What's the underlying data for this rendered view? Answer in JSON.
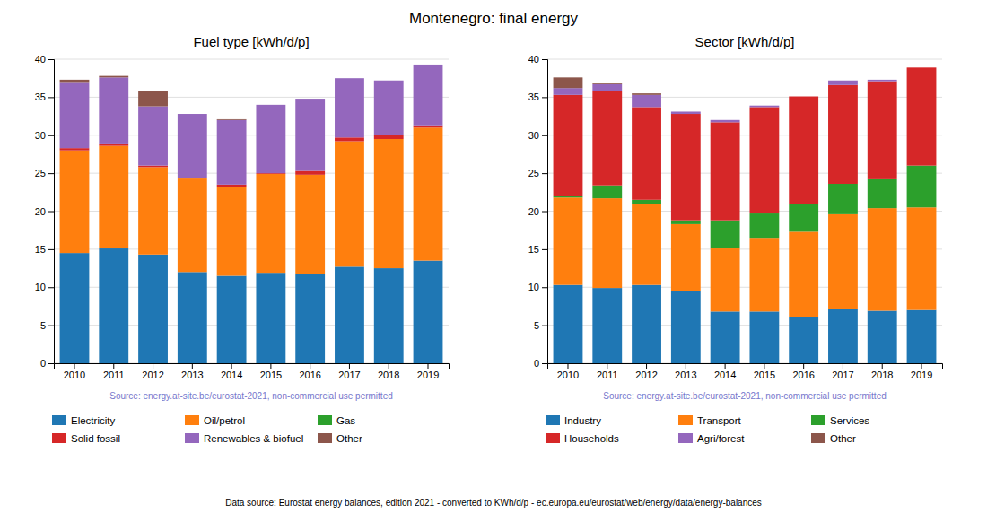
{
  "title": "Montenegro: final energy",
  "annotations": [
    "Data source: Eurostat energy balances, edition 2021 - converted to KWh/d/p - ec.europa.eu/eurostat/web/energy/data/energy-balances"
  ],
  "chart_data": [
    {
      "type": "bar",
      "title": "Fuel type [kWh/d/p]",
      "stacked": true,
      "grid": true,
      "legend": "bottom",
      "categories": [
        "2010",
        "2011",
        "2012",
        "2013",
        "2014",
        "2015",
        "2016",
        "2017",
        "2018",
        "2019"
      ],
      "series": [
        {
          "name": "Electricity",
          "color": "#1f77b4",
          "values": [
            14.5,
            15.1,
            14.3,
            12.0,
            11.5,
            11.9,
            11.8,
            12.7,
            12.5,
            13.5
          ]
        },
        {
          "name": "Oil/petrol",
          "color": "#ff7f0e",
          "values": [
            13.5,
            13.5,
            11.5,
            12.3,
            11.7,
            13.0,
            13.0,
            16.5,
            17.0,
            17.5
          ]
        },
        {
          "name": "Gas",
          "color": "#2ca02c",
          "values": [
            0.0,
            0.0,
            0.0,
            0.0,
            0.0,
            0.0,
            0.0,
            0.0,
            0.0,
            0.0
          ]
        },
        {
          "name": "Solid fossil",
          "color": "#d62728",
          "values": [
            0.3,
            0.2,
            0.2,
            0.0,
            0.3,
            0.1,
            0.5,
            0.5,
            0.5,
            0.3
          ]
        },
        {
          "name": "Renewables & biofuel",
          "color": "#9467bd",
          "values": [
            8.7,
            8.8,
            7.8,
            8.5,
            8.5,
            9.0,
            9.5,
            7.8,
            7.2,
            8.0
          ]
        },
        {
          "name": "Other",
          "color": "#8c564b",
          "values": [
            0.3,
            0.2,
            2.0,
            0.0,
            0.1,
            0.0,
            0.0,
            0.0,
            0.0,
            0.0
          ]
        }
      ],
      "ylim": [
        0,
        40
      ],
      "yticks": [
        0,
        5,
        10,
        15,
        20,
        25,
        30,
        35,
        40
      ],
      "annotations": [
        "Source: energy.at-site.be/eurostat-2021, non-commercial use permitted"
      ]
    },
    {
      "type": "bar",
      "title": "Sector [kWh/d/p]",
      "stacked": true,
      "grid": true,
      "legend": "bottom",
      "categories": [
        "2010",
        "2011",
        "2012",
        "2013",
        "2014",
        "2015",
        "2016",
        "2017",
        "2018",
        "2019"
      ],
      "series": [
        {
          "name": "Industry",
          "color": "#1f77b4",
          "values": [
            10.3,
            9.9,
            10.3,
            9.5,
            6.8,
            6.8,
            6.1,
            7.2,
            6.9,
            7.0
          ]
        },
        {
          "name": "Transport",
          "color": "#ff7f0e",
          "values": [
            11.5,
            11.8,
            10.7,
            8.8,
            8.3,
            9.7,
            11.2,
            12.4,
            13.5,
            13.5
          ]
        },
        {
          "name": "Services",
          "color": "#2ca02c",
          "values": [
            0.2,
            1.7,
            0.5,
            0.5,
            3.7,
            3.2,
            3.6,
            4.0,
            3.8,
            5.5
          ]
        },
        {
          "name": "Households",
          "color": "#d62728",
          "values": [
            13.3,
            12.4,
            12.2,
            14.0,
            12.9,
            14.0,
            14.2,
            13.0,
            12.9,
            12.9
          ]
        },
        {
          "name": "Agri/forest",
          "color": "#9467bd",
          "values": [
            0.9,
            0.9,
            1.6,
            0.3,
            0.3,
            0.2,
            0.0,
            0.6,
            0.2,
            0.0
          ]
        },
        {
          "name": "Other",
          "color": "#8c564b",
          "values": [
            1.4,
            0.1,
            0.2,
            0.0,
            0.0,
            0.0,
            0.0,
            0.0,
            0.0,
            0.0
          ]
        }
      ],
      "ylim": [
        0,
        40
      ],
      "yticks": [
        0,
        5,
        10,
        15,
        20,
        25,
        30,
        35,
        40
      ],
      "annotations": [
        "Source: energy.at-site.be/eurostat-2021, non-commercial use permitted"
      ]
    }
  ]
}
